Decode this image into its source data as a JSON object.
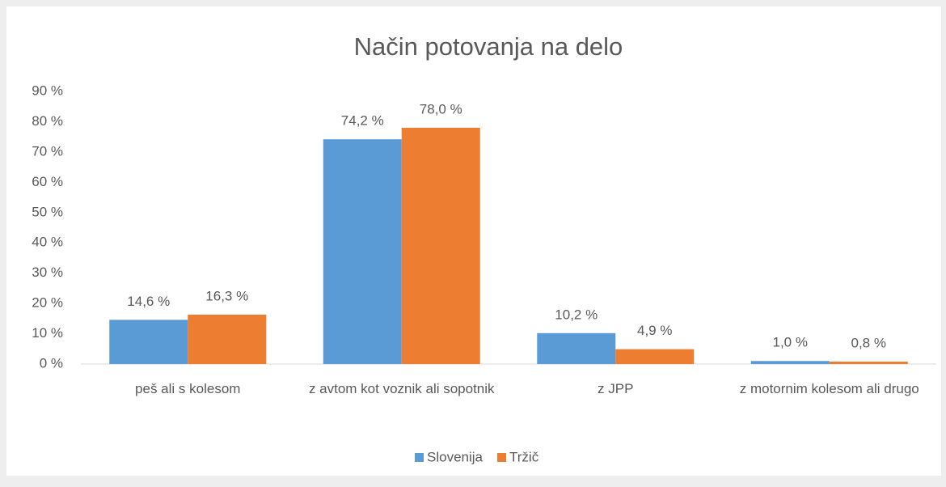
{
  "chart_data": {
    "type": "bar",
    "title": "Način potovanja na delo",
    "categories": [
      "peš ali s kolesom",
      "z avtom kot voznik ali sopotnik",
      "z JPP",
      "z motornim kolesom ali drugo"
    ],
    "series": [
      {
        "name": "Slovenija",
        "color": "#5b9bd5",
        "values": [
          14.6,
          74.2,
          10.2,
          1.0
        ],
        "value_labels": [
          "14,6 %",
          "74,2 %",
          "10,2 %",
          "1,0 %"
        ]
      },
      {
        "name": "Tržič",
        "color": "#ed7d31",
        "values": [
          16.3,
          78.0,
          4.9,
          0.8
        ],
        "value_labels": [
          "16,3 %",
          "78,0 %",
          "4,9 %",
          "0,8 %"
        ]
      }
    ],
    "ylim": [
      0,
      90
    ],
    "yticks": [
      {
        "value": 0,
        "label": "0 %"
      },
      {
        "value": 10,
        "label": "10 %"
      },
      {
        "value": 20,
        "label": "20 %"
      },
      {
        "value": 30,
        "label": "30 %"
      },
      {
        "value": 40,
        "label": "40 %"
      },
      {
        "value": 50,
        "label": "50 %"
      },
      {
        "value": 60,
        "label": "60 %"
      },
      {
        "value": 70,
        "label": "70 %"
      },
      {
        "value": 80,
        "label": "80 %"
      },
      {
        "value": 90,
        "label": "90 %"
      }
    ],
    "grid": false,
    "legend": "bottom"
  }
}
